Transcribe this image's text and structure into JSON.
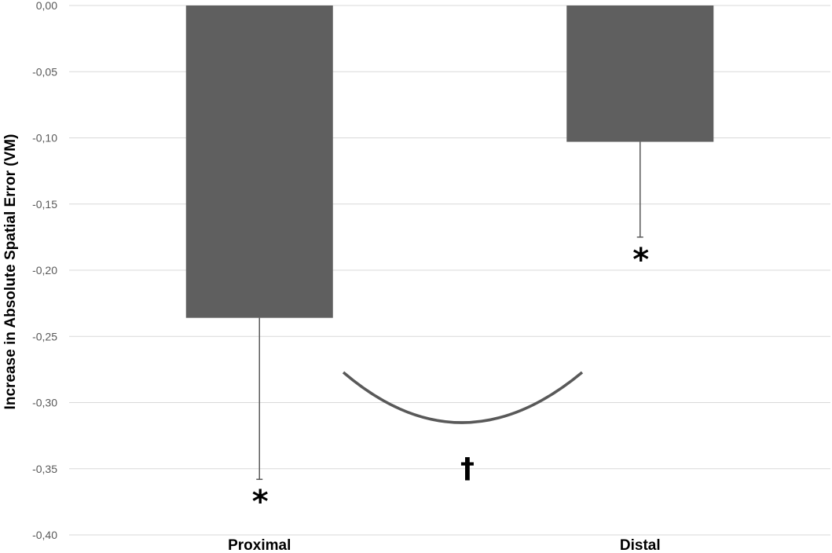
{
  "chart_data": {
    "type": "bar",
    "categories": [
      "Proximal",
      "Distal"
    ],
    "values": [
      -0.236,
      -0.103
    ],
    "error_bars": [
      0.122,
      0.072
    ],
    "ylabel": "Increase in Absolute Spatial Error (VM)",
    "ylim": [
      -0.4,
      0.0
    ],
    "yticks": [
      "0,00",
      "-0,05",
      "-0,10",
      "-0,15",
      "-0,20",
      "-0,25",
      "-0,30",
      "-0,35",
      "-0,40"
    ],
    "grid": true,
    "bar_color": "#5f5f5f",
    "annotations": {
      "bar_marks": [
        "*",
        "*"
      ],
      "comparison_mark": "†"
    }
  }
}
